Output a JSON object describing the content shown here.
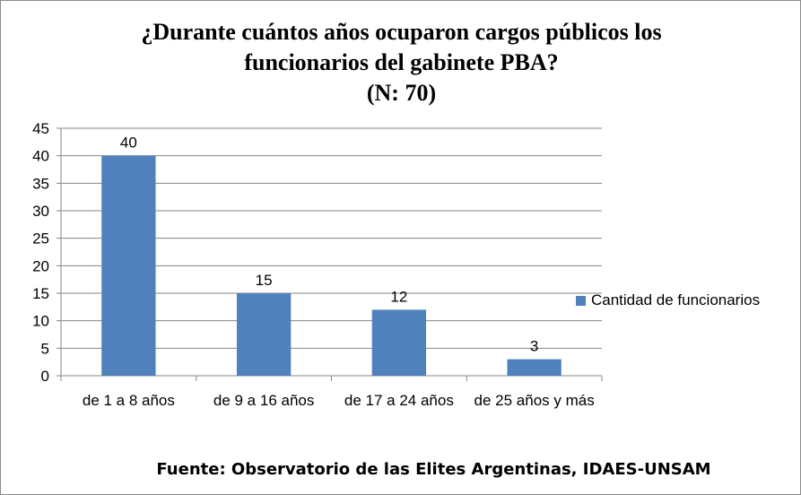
{
  "chart_data": {
    "type": "bar",
    "title_lines": [
      "¿Durante cuántos años ocuparon  cargos públicos los",
      "funcionarios  del gabinete PBA?",
      "(N: 70)"
    ],
    "categories": [
      "de 1 a 8 años",
      "de 9 a 16 años",
      "de 17 a 24 años",
      "de 25 años y más"
    ],
    "series": [
      {
        "name": "Cantidad de funcionarios",
        "values": [
          40,
          15,
          12,
          3
        ],
        "color": "#4f81bd"
      }
    ],
    "data_labels": [
      "40",
      "15",
      "12",
      "3"
    ],
    "ylim": [
      0,
      45
    ],
    "ytick_labels": [
      "0",
      "5",
      "10",
      "15",
      "20",
      "25",
      "30",
      "35",
      "40",
      "45"
    ],
    "grid": true,
    "legend_position": "right",
    "source": "Fuente: Observatorio de las Elites Argentinas, IDAES-UNSAM"
  }
}
